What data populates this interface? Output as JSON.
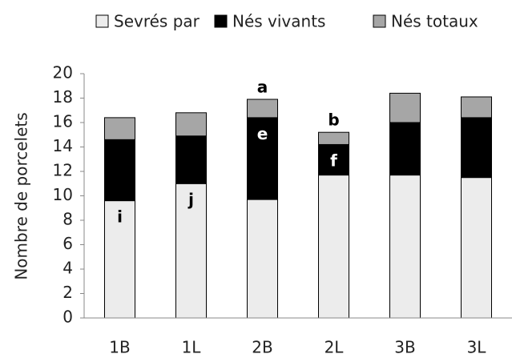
{
  "chart_data": {
    "type": "stacked_bar",
    "categories": [
      "1B",
      "1L",
      "2B",
      "2L",
      "3B",
      "3L"
    ],
    "series": [
      {
        "name": "Sevrés par",
        "color": "#ececec",
        "values": [
          9.6,
          11.0,
          9.7,
          11.7,
          11.7,
          11.5
        ]
      },
      {
        "name": "Nés vivants",
        "color": "#000000",
        "values": [
          5.0,
          3.9,
          6.7,
          2.5,
          4.3,
          4.9
        ]
      },
      {
        "name": "Nés totaux",
        "color": "#a6a6a6",
        "values": [
          1.8,
          1.9,
          1.5,
          1.0,
          2.4,
          1.7
        ]
      }
    ],
    "y_label": "Nombre de porcelets",
    "ylim": [
      0,
      20
    ],
    "yticks": [
      0,
      2,
      4,
      6,
      8,
      10,
      12,
      14,
      16,
      18,
      20
    ],
    "legend": "top",
    "annotations": [
      {
        "text": "a",
        "category": "2B",
        "series": "Nés totaux"
      },
      {
        "text": "b",
        "category": "2L",
        "series": "Nés totaux"
      },
      {
        "text": "e",
        "category": "2B",
        "series": "Nés vivants"
      },
      {
        "text": "f",
        "category": "2L",
        "series": "Nés vivants"
      },
      {
        "text": "i",
        "category": "1B",
        "series": "Sevrés par"
      },
      {
        "text": "j",
        "category": "1L",
        "series": "Sevrés par"
      }
    ]
  }
}
